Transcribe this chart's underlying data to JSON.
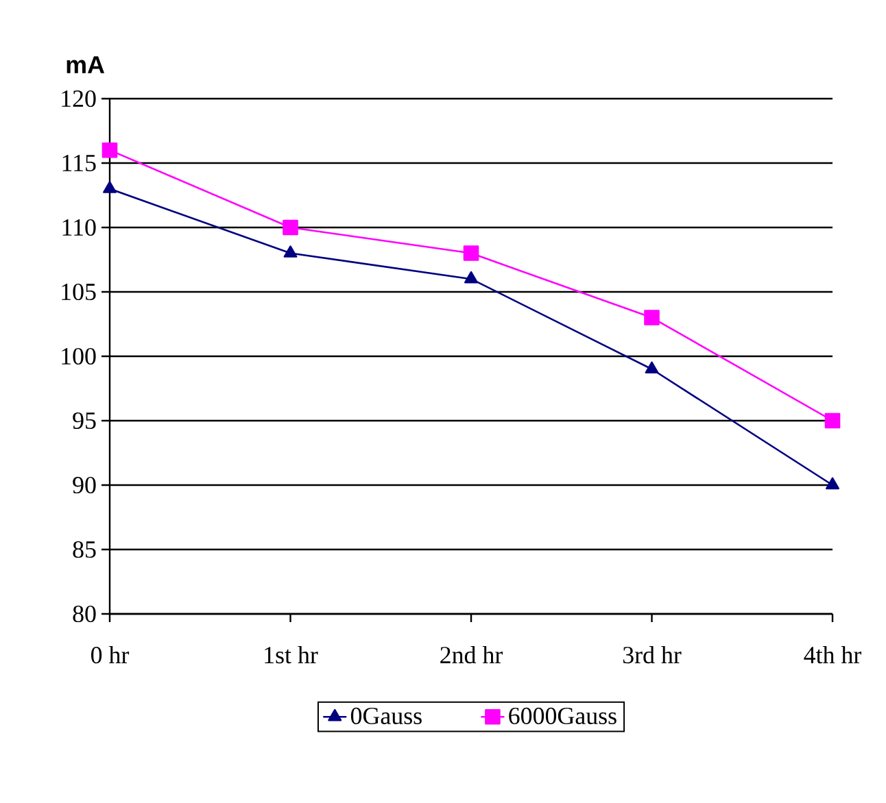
{
  "chart_data": {
    "type": "line",
    "ylabel": "mA",
    "categories": [
      "0 hr",
      "1st hr",
      "2nd hr",
      "3rd hr",
      "4th hr"
    ],
    "series": [
      {
        "name": "0Gauss",
        "color": "#000080",
        "marker": "triangle",
        "values": [
          113,
          108,
          106,
          99,
          90
        ]
      },
      {
        "name": "6000Gauss",
        "color": "#ff00ff",
        "marker": "square",
        "values": [
          116,
          110,
          108,
          103,
          95
        ]
      }
    ],
    "ylim": [
      80,
      120
    ],
    "yticks": [
      80,
      85,
      90,
      95,
      100,
      105,
      110,
      115,
      120
    ],
    "grid": "y",
    "legend": "bottom",
    "line_style": "solid"
  }
}
